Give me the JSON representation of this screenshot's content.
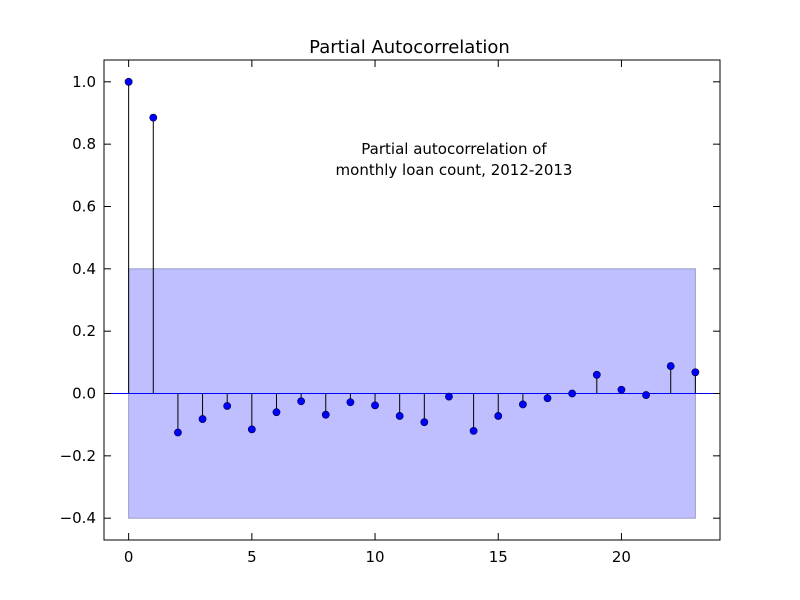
{
  "chart_data": {
    "type": "stem",
    "title": "Partial Autocorrelation",
    "annotation": [
      "Partial autocorrelation of",
      "monthly loan count, 2012-2013"
    ],
    "xlabel": "",
    "ylabel": "",
    "xlim": [
      -1,
      24
    ],
    "ylim": [
      -0.47,
      1.07
    ],
    "x_ticks": [
      0,
      5,
      10,
      15,
      20
    ],
    "x_tick_labels": [
      "0",
      "5",
      "10",
      "15",
      "20"
    ],
    "y_ticks": [
      -0.4,
      -0.2,
      0.0,
      0.2,
      0.4,
      0.6,
      0.8,
      1.0
    ],
    "y_tick_labels": [
      "−0.4",
      "−0.2",
      "0.0",
      "0.2",
      "0.4",
      "0.6",
      "0.8",
      "1.0"
    ],
    "grid": false,
    "confidence_band": {
      "x_start": 0,
      "x_end": 23,
      "lower": -0.4,
      "upper": 0.4,
      "color": "#bfbfff"
    },
    "baseline": 0,
    "marker_color": "#0000ff",
    "stem_color": "#000000",
    "baseline_color": "#0000ff",
    "series": [
      {
        "lags": [
          0,
          1,
          2,
          3,
          4,
          5,
          6,
          7,
          8,
          9,
          10,
          11,
          12,
          13,
          14,
          15,
          16,
          17,
          18,
          19,
          20,
          21,
          22,
          23
        ],
        "values": [
          1.0,
          0.885,
          -0.125,
          -0.082,
          -0.04,
          -0.115,
          -0.06,
          -0.025,
          -0.068,
          -0.028,
          -0.038,
          -0.072,
          -0.092,
          -0.01,
          -0.12,
          -0.072,
          -0.035,
          -0.015,
          0.0,
          0.06,
          0.012,
          -0.005,
          0.088,
          0.068
        ]
      }
    ]
  }
}
